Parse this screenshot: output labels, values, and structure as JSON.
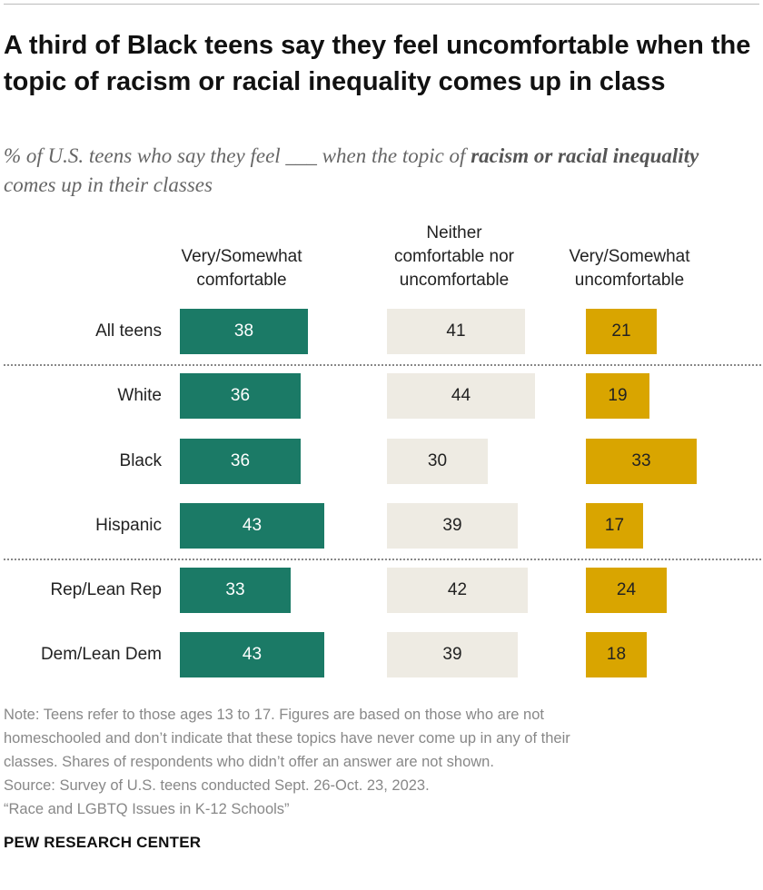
{
  "title": "A third of Black teens say they feel uncomfortable when the topic of racism or racial inequality comes up in class",
  "subtitle_pre": "% of U.S. teens who say they feel ___ when the topic of ",
  "subtitle_bold": "racism or racial inequality",
  "subtitle_post": " comes up in their classes",
  "chart_data": {
    "type": "bar",
    "stacking": "none",
    "series": [
      {
        "name": "Very/Somewhat comfortable",
        "color": "#1b7a66",
        "values": [
          38,
          36,
          36,
          43,
          33,
          43
        ]
      },
      {
        "name": "Neither comfortable nor uncomfortable",
        "color": "#eeebe3",
        "values": [
          41,
          44,
          30,
          39,
          42,
          39
        ]
      },
      {
        "name": "Very/Somewhat uncomfortable",
        "color": "#d9a500",
        "values": [
          21,
          19,
          33,
          17,
          24,
          18
        ]
      }
    ],
    "categories": [
      "All teens",
      "White",
      "Black",
      "Hispanic",
      "Rep/Lean Rep",
      "Dem/Lean Dem"
    ],
    "column_headers": [
      [
        "Very/Somewhat",
        "comfortable"
      ],
      [
        "Neither",
        "comfortable nor",
        "uncomfortable"
      ],
      [
        "Very/Somewhat",
        "uncomfortable"
      ]
    ],
    "group_dividers_after": [
      0,
      3
    ]
  },
  "notes": [
    "Note: Teens refer to those ages 13 to 17. Figures are based on those who are not",
    "homeschooled and don’t indicate that these topics have never come up in any of their",
    "classes. Shares of respondents who didn’t offer an answer are not shown.",
    "Source: Survey of U.S. teens conducted Sept. 26-Oct. 23, 2023.",
    "“Race and LGBTQ Issues in K-12 Schools”"
  ],
  "brand": "PEW RESEARCH CENTER"
}
